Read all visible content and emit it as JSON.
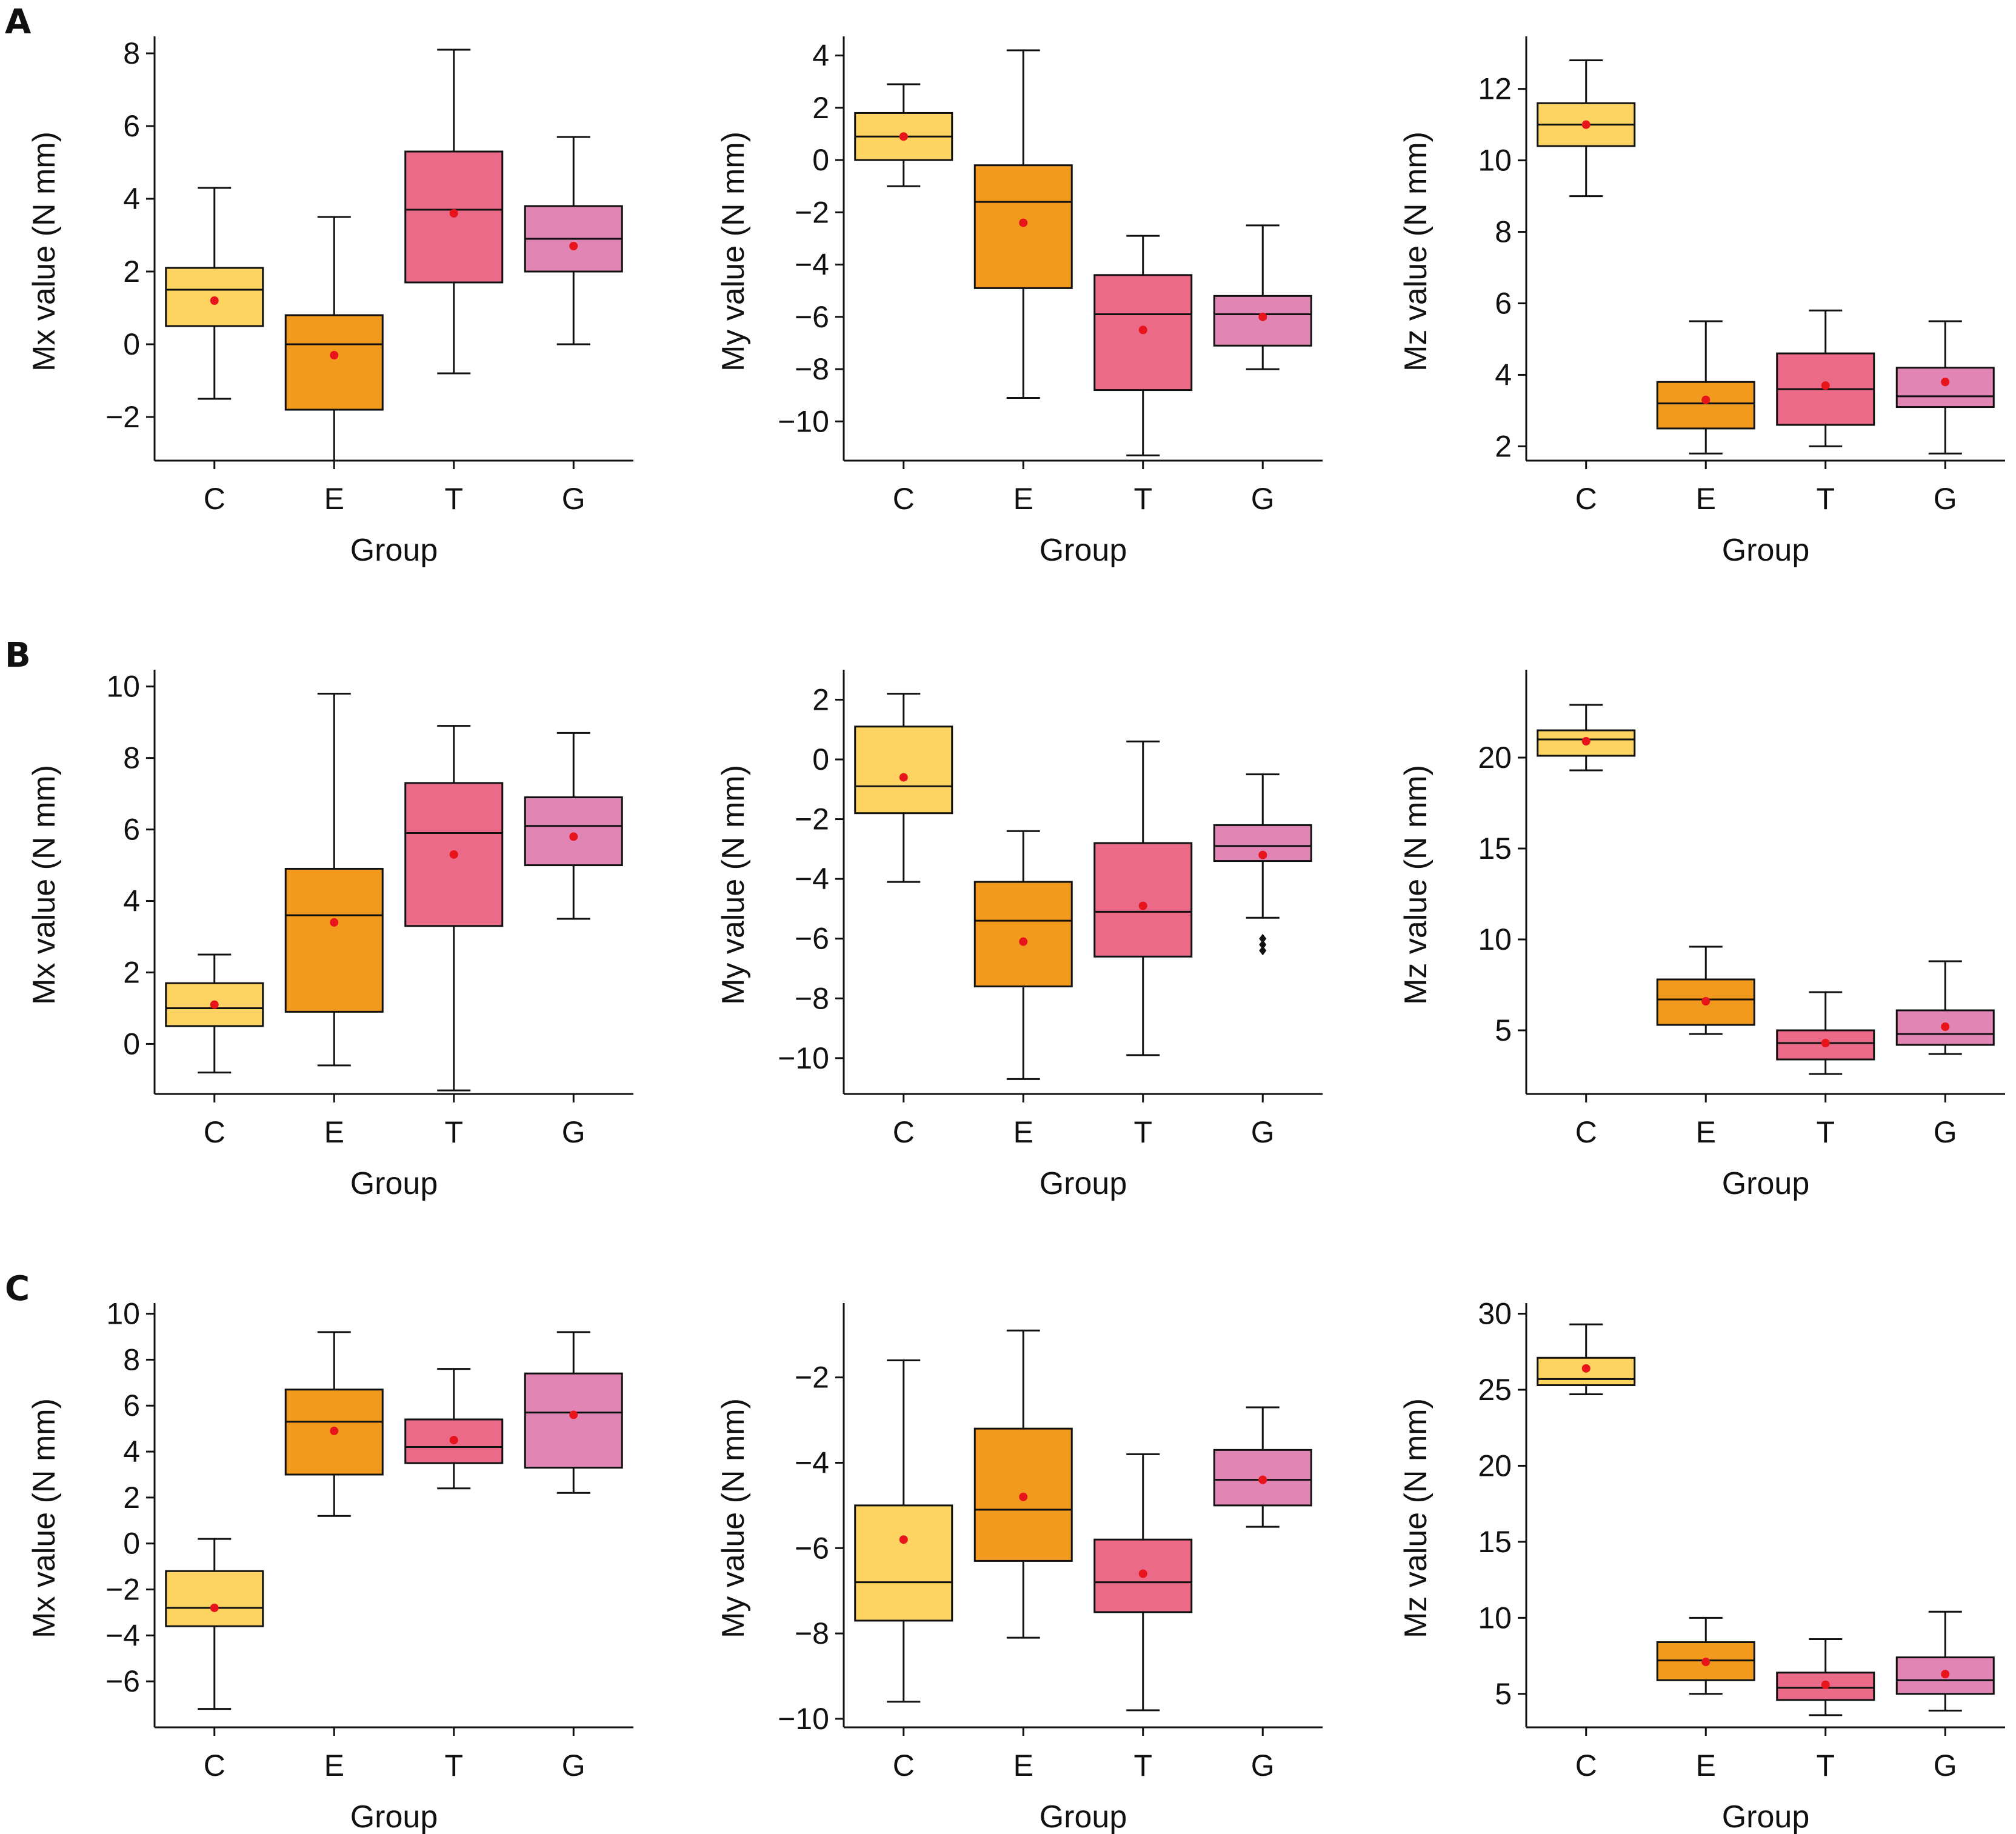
{
  "colors": {
    "C": "#fdd462",
    "E": "#f29a1e",
    "T": "#ea6a88",
    "G": "#e185b4",
    "mean": "#e8141b"
  },
  "rows": [
    {
      "label": "A"
    },
    {
      "label": "B"
    },
    {
      "label": "C"
    }
  ],
  "chart_data": [
    {
      "type": "box",
      "row": 0,
      "col": 0,
      "ylabel": "Mx value (N mm)",
      "xlabel": "Group",
      "categories": [
        "C",
        "E",
        "T",
        "G"
      ],
      "ylim": [
        -3.2,
        8.3
      ],
      "yticks": [
        -2,
        0,
        2,
        4,
        6,
        8
      ],
      "boxes": [
        {
          "min": -1.5,
          "q1": 0.5,
          "median": 1.5,
          "q3": 2.1,
          "max": 4.3,
          "mean": 1.2
        },
        {
          "min": -3.2,
          "q1": -1.8,
          "median": 0.0,
          "q3": 0.8,
          "max": 3.5,
          "mean": -0.3
        },
        {
          "min": -0.8,
          "q1": 1.7,
          "median": 3.7,
          "q3": 5.3,
          "max": 8.1,
          "mean": 3.6
        },
        {
          "min": 0.0,
          "q1": 2.0,
          "median": 2.9,
          "q3": 3.8,
          "max": 5.7,
          "mean": 2.7
        }
      ]
    },
    {
      "type": "box",
      "row": 0,
      "col": 1,
      "ylabel": "My value (N mm)",
      "xlabel": "Group",
      "categories": [
        "C",
        "E",
        "T",
        "G"
      ],
      "ylim": [
        -11.5,
        4.5
      ],
      "yticks": [
        -10,
        -8,
        -6,
        -4,
        -2,
        0,
        2,
        4
      ],
      "boxes": [
        {
          "min": -1.0,
          "q1": 0.0,
          "median": 0.9,
          "q3": 1.8,
          "max": 2.9,
          "mean": 0.9
        },
        {
          "min": -9.1,
          "q1": -4.9,
          "median": -1.6,
          "q3": -0.2,
          "max": 4.2,
          "mean": -2.4
        },
        {
          "min": -11.3,
          "q1": -8.8,
          "median": -5.9,
          "q3": -4.4,
          "max": -2.9,
          "mean": -6.5
        },
        {
          "min": -8.0,
          "q1": -7.1,
          "median": -5.9,
          "q3": -5.2,
          "max": -2.5,
          "mean": -6.0
        }
      ]
    },
    {
      "type": "box",
      "row": 0,
      "col": 2,
      "ylabel": "Mz value (N mm)",
      "xlabel": "Group",
      "categories": [
        "C",
        "E",
        "T",
        "G"
      ],
      "ylim": [
        1.6,
        13.3
      ],
      "yticks": [
        2,
        4,
        6,
        8,
        10,
        12
      ],
      "boxes": [
        {
          "min": 9.0,
          "q1": 10.4,
          "median": 11.0,
          "q3": 11.6,
          "max": 12.8,
          "mean": 11.0
        },
        {
          "min": 1.8,
          "q1": 2.5,
          "median": 3.2,
          "q3": 3.8,
          "max": 5.5,
          "mean": 3.3
        },
        {
          "min": 2.0,
          "q1": 2.6,
          "median": 3.6,
          "q3": 4.6,
          "max": 5.8,
          "mean": 3.7
        },
        {
          "min": 1.8,
          "q1": 3.1,
          "median": 3.4,
          "q3": 4.2,
          "max": 5.5,
          "mean": 3.8
        }
      ]
    },
    {
      "type": "box",
      "row": 1,
      "col": 0,
      "ylabel": "Mx value (N mm)",
      "xlabel": "Group",
      "categories": [
        "C",
        "E",
        "T",
        "G"
      ],
      "ylim": [
        -1.4,
        10.3
      ],
      "yticks": [
        0,
        2,
        4,
        6,
        8,
        10
      ],
      "boxes": [
        {
          "min": -0.8,
          "q1": 0.5,
          "median": 1.0,
          "q3": 1.7,
          "max": 2.5,
          "mean": 1.1
        },
        {
          "min": -0.6,
          "q1": 0.9,
          "median": 3.6,
          "q3": 4.9,
          "max": 9.8,
          "mean": 3.4
        },
        {
          "min": -1.3,
          "q1": 3.3,
          "median": 5.9,
          "q3": 7.3,
          "max": 8.9,
          "mean": 5.3
        },
        {
          "min": 3.5,
          "q1": 5.0,
          "median": 6.1,
          "q3": 6.9,
          "max": 8.7,
          "mean": 5.8
        }
      ]
    },
    {
      "type": "box",
      "row": 1,
      "col": 1,
      "ylabel": "My value (N mm)",
      "xlabel": "Group",
      "categories": [
        "C",
        "E",
        "T",
        "G"
      ],
      "ylim": [
        -11.2,
        2.8
      ],
      "yticks": [
        -10,
        -8,
        -6,
        -4,
        -2,
        0,
        2
      ],
      "boxes": [
        {
          "min": -4.1,
          "q1": -1.8,
          "median": -0.9,
          "q3": 1.1,
          "max": 2.2,
          "mean": -0.6
        },
        {
          "min": -10.7,
          "q1": -7.6,
          "median": -5.4,
          "q3": -4.1,
          "max": -2.4,
          "mean": -6.1
        },
        {
          "min": -9.9,
          "q1": -6.6,
          "median": -5.1,
          "q3": -2.8,
          "max": 0.6,
          "mean": -4.9
        },
        {
          "min": -5.3,
          "q1": -3.4,
          "median": -2.9,
          "q3": -2.2,
          "max": -0.5,
          "mean": -3.2,
          "outliers": [
            -6.0,
            -6.2,
            -6.4
          ]
        }
      ]
    },
    {
      "type": "box",
      "row": 1,
      "col": 2,
      "ylabel": "Mz value (N mm)",
      "xlabel": "Group",
      "categories": [
        "C",
        "E",
        "T",
        "G"
      ],
      "ylim": [
        1.5,
        24.5
      ],
      "yticks": [
        5,
        10,
        15,
        20
      ],
      "boxes": [
        {
          "min": 19.3,
          "q1": 20.1,
          "median": 21.0,
          "q3": 21.5,
          "max": 22.9,
          "mean": 20.9
        },
        {
          "min": 4.8,
          "q1": 5.3,
          "median": 6.7,
          "q3": 7.8,
          "max": 9.6,
          "mean": 6.6
        },
        {
          "min": 2.6,
          "q1": 3.4,
          "median": 4.3,
          "q3": 5.0,
          "max": 7.1,
          "mean": 4.3
        },
        {
          "min": 3.7,
          "q1": 4.2,
          "median": 4.8,
          "q3": 6.1,
          "max": 8.8,
          "mean": 5.2
        }
      ]
    },
    {
      "type": "box",
      "row": 2,
      "col": 0,
      "ylabel": "Mx value (N mm)",
      "xlabel": "Group",
      "categories": [
        "C",
        "E",
        "T",
        "G"
      ],
      "ylim": [
        -8.0,
        10.2
      ],
      "yticks": [
        -6,
        -4,
        -2,
        0,
        2,
        4,
        6,
        8,
        10
      ],
      "boxes": [
        {
          "min": -7.2,
          "q1": -3.6,
          "median": -2.8,
          "q3": -1.2,
          "max": 0.2,
          "mean": -2.8
        },
        {
          "min": 1.2,
          "q1": 3.0,
          "median": 5.3,
          "q3": 6.7,
          "max": 9.2,
          "mean": 4.9
        },
        {
          "min": 2.4,
          "q1": 3.5,
          "median": 4.2,
          "q3": 5.4,
          "max": 7.6,
          "mean": 4.5
        },
        {
          "min": 2.2,
          "q1": 3.3,
          "median": 5.7,
          "q3": 7.4,
          "max": 9.2,
          "mean": 5.6
        }
      ]
    },
    {
      "type": "box",
      "row": 2,
      "col": 1,
      "ylabel": "My value (N mm)",
      "xlabel": "Group",
      "categories": [
        "C",
        "E",
        "T",
        "G"
      ],
      "ylim": [
        -10.2,
        -0.4
      ],
      "yticks": [
        -10,
        -8,
        -6,
        -4,
        -2
      ],
      "boxes": [
        {
          "min": -9.6,
          "q1": -7.7,
          "median": -6.8,
          "q3": -5.0,
          "max": -1.6,
          "mean": -5.8
        },
        {
          "min": -8.1,
          "q1": -6.3,
          "median": -5.1,
          "q3": -3.2,
          "max": -0.9,
          "mean": -4.8
        },
        {
          "min": -9.8,
          "q1": -7.5,
          "median": -6.8,
          "q3": -5.8,
          "max": -3.8,
          "mean": -6.6
        },
        {
          "min": -5.5,
          "q1": -5.0,
          "median": -4.4,
          "q3": -3.7,
          "max": -2.7,
          "mean": -4.4
        }
      ]
    },
    {
      "type": "box",
      "row": 2,
      "col": 2,
      "ylabel": "Mz value (N mm)",
      "xlabel": "Group",
      "categories": [
        "C",
        "E",
        "T",
        "G"
      ],
      "ylim": [
        2.8,
        30.3
      ],
      "yticks": [
        5,
        10,
        15,
        20,
        25,
        30
      ],
      "boxes": [
        {
          "min": 24.7,
          "q1": 25.3,
          "median": 25.7,
          "q3": 27.1,
          "max": 29.3,
          "mean": 26.4
        },
        {
          "min": 5.0,
          "q1": 5.9,
          "median": 7.2,
          "q3": 8.4,
          "max": 10.0,
          "mean": 7.1
        },
        {
          "min": 3.6,
          "q1": 4.6,
          "median": 5.4,
          "q3": 6.4,
          "max": 8.6,
          "mean": 5.6
        },
        {
          "min": 3.9,
          "q1": 5.0,
          "median": 5.9,
          "q3": 7.4,
          "max": 10.4,
          "mean": 6.3
        }
      ]
    }
  ]
}
